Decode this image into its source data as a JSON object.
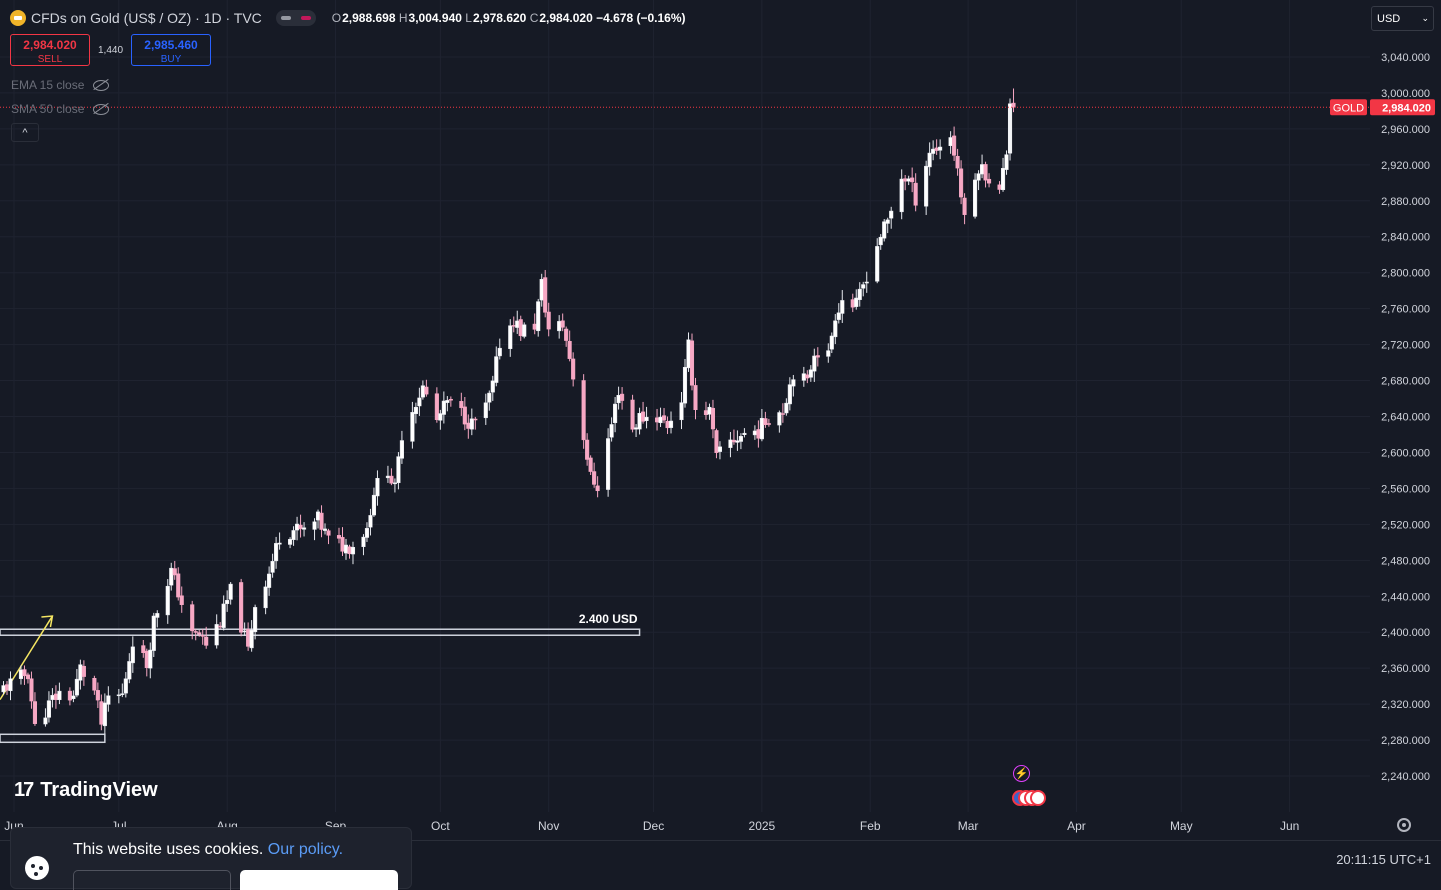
{
  "header": {
    "symbol_title": "CFDs on Gold (US$ / OZ) · 1D · TVC",
    "o_label": "O",
    "o_value": "2,988.698",
    "h_label": "H",
    "h_value": "3,004.940",
    "l_label": "L",
    "l_value": "2,978.620",
    "c_label": "C",
    "c_value": "2,984.020",
    "change": "−4.678 (−0.16%)"
  },
  "trade": {
    "sell_price": "2,984.020",
    "sell_label": "SELL",
    "spread": "1,440",
    "buy_price": "2,985.460",
    "buy_label": "BUY"
  },
  "indicators": [
    {
      "label": "EMA 15 close"
    },
    {
      "label": "SMA 50 close"
    }
  ],
  "currency_select": "USD",
  "clock": "20:11:15 UTC+1",
  "cookie": {
    "text": "This website uses cookies.",
    "link": "Our policy."
  },
  "watermark": "TradingView",
  "colors": {
    "up": "#ffffff",
    "down": "#f7a8c4",
    "price_line": "#f23645",
    "background": "#161a25",
    "grid": "#1f2330",
    "annotation": "#cfd3dd",
    "arrow": "#f5e663"
  },
  "chart_data": {
    "type": "candlestick",
    "title": "CFDs on Gold (US$ / OZ) · 1D · TVC",
    "symbol_label": "GOLD",
    "last_price": "2,984.020",
    "ylim": [
      2200,
      3070
    ],
    "y_ticks": [
      "2,240.000",
      "2,280.000",
      "2,320.000",
      "2,360.000",
      "2,400.000",
      "2,440.000",
      "2,480.000",
      "2,520.000",
      "2,560.000",
      "2,600.000",
      "2,640.000",
      "2,680.000",
      "2,720.000",
      "2,760.000",
      "2,800.000",
      "2,840.000",
      "2,880.000",
      "2,920.000",
      "2,960.000",
      "3,000.000",
      "3,040.000"
    ],
    "x_ticks": [
      "Jun",
      "Jul",
      "Aug",
      "Sep",
      "Oct",
      "Nov",
      "Dec",
      "2025",
      "Feb",
      "Mar",
      "Apr",
      "May",
      "Jun"
    ],
    "x_tick_dates": [
      "2024-06-01",
      "2024-07-01",
      "2024-08-01",
      "2024-09-01",
      "2024-10-01",
      "2024-11-01",
      "2024-12-01",
      "2025-01-01",
      "2025-02-01",
      "2025-03-01",
      "2025-04-01",
      "2025-05-01",
      "2025-06-01"
    ],
    "xlim": [
      "2024-05-28",
      "2025-06-24"
    ],
    "annotation": {
      "label": "2.400 USD",
      "price": 2400,
      "x_start": "2024-05-28",
      "x_end": "2024-11-27"
    },
    "closes": [
      {
        "d": "2024-05-29",
        "c": 2338
      },
      {
        "d": "2024-06-03",
        "c": 2350
      },
      {
        "d": "2024-06-05",
        "c": 2355
      },
      {
        "d": "2024-06-07",
        "c": 2294
      },
      {
        "d": "2024-06-12",
        "c": 2325
      },
      {
        "d": "2024-06-14",
        "c": 2332
      },
      {
        "d": "2024-06-18",
        "c": 2329
      },
      {
        "d": "2024-06-20",
        "c": 2360
      },
      {
        "d": "2024-06-24",
        "c": 2334
      },
      {
        "d": "2024-06-26",
        "c": 2298
      },
      {
        "d": "2024-06-28",
        "c": 2327
      },
      {
        "d": "2024-07-02",
        "c": 2330
      },
      {
        "d": "2024-07-05",
        "c": 2392
      },
      {
        "d": "2024-07-09",
        "c": 2364
      },
      {
        "d": "2024-07-11",
        "c": 2414
      },
      {
        "d": "2024-07-16",
        "c": 2468
      },
      {
        "d": "2024-07-18",
        "c": 2445
      },
      {
        "d": "2024-07-22",
        "c": 2396
      },
      {
        "d": "2024-07-24",
        "c": 2398
      },
      {
        "d": "2024-07-26",
        "c": 2387
      },
      {
        "d": "2024-07-30",
        "c": 2412
      },
      {
        "d": "2024-08-02",
        "c": 2445
      },
      {
        "d": "2024-08-05",
        "c": 2408
      },
      {
        "d": "2024-08-07",
        "c": 2380
      },
      {
        "d": "2024-08-09",
        "c": 2431
      },
      {
        "d": "2024-08-13",
        "c": 2466
      },
      {
        "d": "2024-08-16",
        "c": 2507
      },
      {
        "d": "2024-08-20",
        "c": 2514
      },
      {
        "d": "2024-08-23",
        "c": 2512
      },
      {
        "d": "2024-08-27",
        "c": 2525
      },
      {
        "d": "2024-08-30",
        "c": 2503
      },
      {
        "d": "2024-09-04",
        "c": 2495
      },
      {
        "d": "2024-09-06",
        "c": 2497
      },
      {
        "d": "2024-09-10",
        "c": 2516
      },
      {
        "d": "2024-09-12",
        "c": 2558
      },
      {
        "d": "2024-09-16",
        "c": 2582
      },
      {
        "d": "2024-09-18",
        "c": 2558
      },
      {
        "d": "2024-09-20",
        "c": 2621
      },
      {
        "d": "2024-09-24",
        "c": 2657
      },
      {
        "d": "2024-09-26",
        "c": 2672
      },
      {
        "d": "2024-09-30",
        "c": 2635
      },
      {
        "d": "2024-10-03",
        "c": 2656
      },
      {
        "d": "2024-10-07",
        "c": 2644
      },
      {
        "d": "2024-10-10",
        "c": 2631
      },
      {
        "d": "2024-10-14",
        "c": 2649
      },
      {
        "d": "2024-10-16",
        "c": 2674
      },
      {
        "d": "2024-10-18",
        "c": 2722
      },
      {
        "d": "2024-10-22",
        "c": 2748
      },
      {
        "d": "2024-10-24",
        "c": 2735
      },
      {
        "d": "2024-10-28",
        "c": 2742
      },
      {
        "d": "2024-10-30",
        "c": 2787
      },
      {
        "d": "2024-11-01",
        "c": 2736
      },
      {
        "d": "2024-11-05",
        "c": 2742
      },
      {
        "d": "2024-11-07",
        "c": 2706
      },
      {
        "d": "2024-11-11",
        "c": 2619
      },
      {
        "d": "2024-11-13",
        "c": 2572
      },
      {
        "d": "2024-11-15",
        "c": 2563
      },
      {
        "d": "2024-11-19",
        "c": 2631
      },
      {
        "d": "2024-11-21",
        "c": 2670
      },
      {
        "d": "2024-11-25",
        "c": 2626
      },
      {
        "d": "2024-11-27",
        "c": 2639
      },
      {
        "d": "2024-12-02",
        "c": 2640
      },
      {
        "d": "2024-12-05",
        "c": 2631
      },
      {
        "d": "2024-12-09",
        "c": 2660
      },
      {
        "d": "2024-12-11",
        "c": 2717
      },
      {
        "d": "2024-12-13",
        "c": 2648
      },
      {
        "d": "2024-12-17",
        "c": 2646
      },
      {
        "d": "2024-12-19",
        "c": 2594
      },
      {
        "d": "2024-12-23",
        "c": 2612
      },
      {
        "d": "2024-12-27",
        "c": 2621
      },
      {
        "d": "2024-12-31",
        "c": 2624
      },
      {
        "d": "2025-01-03",
        "c": 2640
      },
      {
        "d": "2025-01-07",
        "c": 2648
      },
      {
        "d": "2025-01-10",
        "c": 2690
      },
      {
        "d": "2025-01-14",
        "c": 2677
      },
      {
        "d": "2025-01-16",
        "c": 2714
      },
      {
        "d": "2025-01-20",
        "c": 2708
      },
      {
        "d": "2025-01-22",
        "c": 2754
      },
      {
        "d": "2025-01-24",
        "c": 2770
      },
      {
        "d": "2025-01-28",
        "c": 2763
      },
      {
        "d": "2025-01-31",
        "c": 2798
      },
      {
        "d": "2025-02-04",
        "c": 2842
      },
      {
        "d": "2025-02-06",
        "c": 2856
      },
      {
        "d": "2025-02-10",
        "c": 2907
      },
      {
        "d": "2025-02-12",
        "c": 2903
      },
      {
        "d": "2025-02-14",
        "c": 2883
      },
      {
        "d": "2025-02-18",
        "c": 2935
      },
      {
        "d": "2025-02-20",
        "c": 2939
      },
      {
        "d": "2025-02-24",
        "c": 2952
      },
      {
        "d": "2025-02-26",
        "c": 2916
      },
      {
        "d": "2025-02-28",
        "c": 2857
      },
      {
        "d": "2025-03-04",
        "c": 2918
      },
      {
        "d": "2025-03-06",
        "c": 2911
      },
      {
        "d": "2025-03-10",
        "c": 2889
      },
      {
        "d": "2025-03-12",
        "c": 2934
      },
      {
        "d": "2025-03-13",
        "c": 2988
      },
      {
        "d": "2025-03-14",
        "c": 2984
      }
    ]
  }
}
